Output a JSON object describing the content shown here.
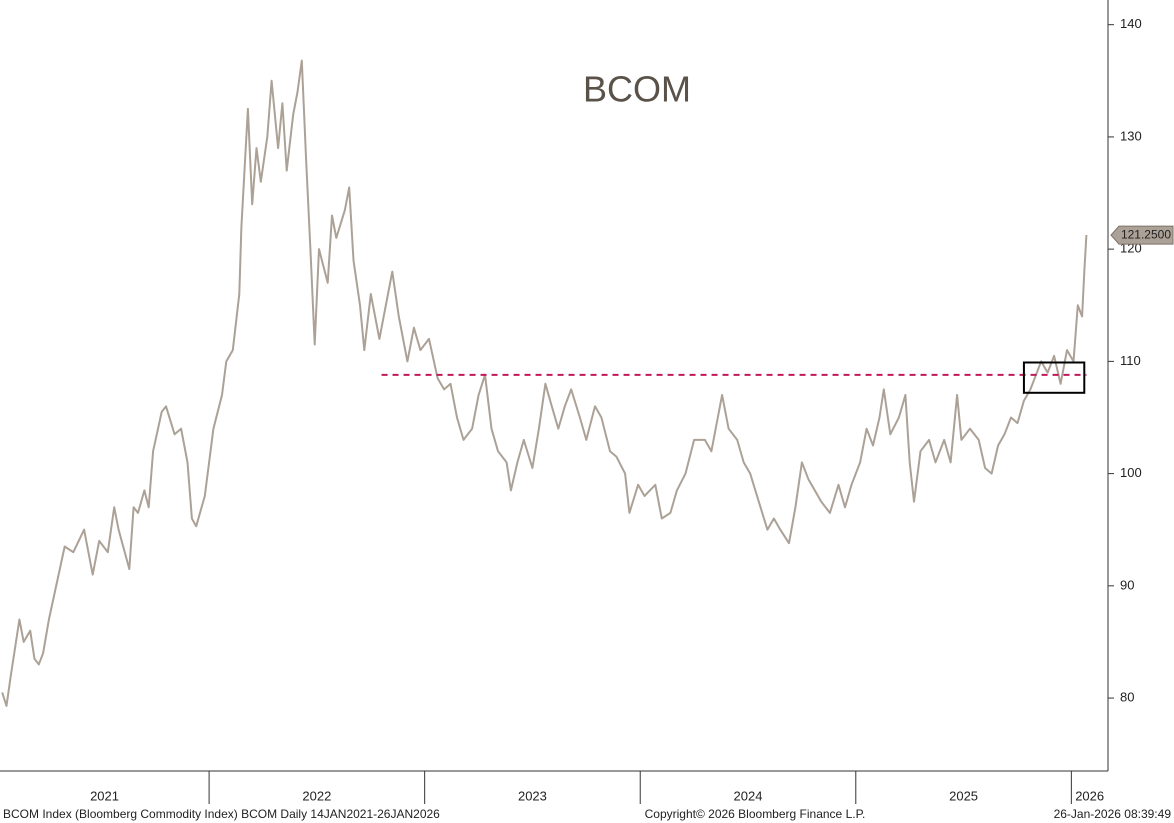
{
  "chart_data": {
    "type": "line",
    "title": "BCOM",
    "x": [
      2021.04,
      2021.06,
      2021.08,
      2021.1,
      2021.12,
      2021.14,
      2021.17,
      2021.19,
      2021.21,
      2021.23,
      2021.257,
      2021.33,
      2021.37,
      2021.42,
      2021.46,
      2021.49,
      2021.53,
      2021.56,
      2021.58,
      2021.63,
      2021.65,
      2021.67,
      2021.7,
      2021.72,
      2021.74,
      2021.78,
      2021.8,
      2021.84,
      2021.87,
      2021.9,
      2021.92,
      2021.94,
      2021.98,
      2022.0,
      2022.02,
      2022.06,
      2022.08,
      2022.11,
      2022.14,
      2022.15,
      2022.18,
      2022.2,
      2022.22,
      2022.24,
      2022.27,
      2022.29,
      2022.32,
      2022.34,
      2022.36,
      2022.39,
      2022.41,
      2022.43,
      2022.45,
      2022.47,
      2022.49,
      2022.51,
      2022.55,
      2022.57,
      2022.59,
      2022.63,
      2022.65,
      2022.67,
      2022.7,
      2022.72,
      2022.75,
      2022.79,
      2022.83,
      2022.85,
      2022.88,
      2022.92,
      2022.95,
      2022.98,
      2023.02,
      2023.06,
      2023.09,
      2023.12,
      2023.15,
      2023.18,
      2023.22,
      2023.25,
      2023.28,
      2023.31,
      2023.34,
      2023.38,
      2023.4,
      2023.43,
      2023.46,
      2023.5,
      2023.53,
      2023.56,
      2023.59,
      2023.62,
      2023.65,
      2023.68,
      2023.72,
      2023.75,
      2023.79,
      2023.82,
      2023.86,
      2023.89,
      2023.93,
      2023.95,
      2023.99,
      2024.02,
      2024.07,
      2024.1,
      2024.14,
      2024.17,
      2024.21,
      2024.25,
      2024.3,
      2024.33,
      2024.36,
      2024.38,
      2024.41,
      2024.45,
      2024.48,
      2024.51,
      2024.55,
      2024.59,
      2024.62,
      2024.65,
      2024.69,
      2024.72,
      2024.75,
      2024.78,
      2024.81,
      2024.84,
      2024.88,
      2024.92,
      2024.95,
      2024.98,
      2025.02,
      2025.05,
      2025.08,
      2025.11,
      2025.13,
      2025.16,
      2025.2,
      2025.23,
      2025.25,
      2025.27,
      2025.3,
      2025.34,
      2025.37,
      2025.41,
      2025.44,
      2025.47,
      2025.49,
      2025.53,
      2025.57,
      2025.6,
      2025.63,
      2025.66,
      2025.69,
      2025.72,
      2025.75,
      2025.78,
      2025.81,
      2025.83,
      2025.86,
      2025.89,
      2025.92,
      2025.95,
      2025.98,
      2026.01,
      2026.03,
      2026.05,
      2026.06,
      2026.07
    ],
    "series": [
      {
        "color": "#aca196",
        "values": [
          80.5,
          79.3,
          82,
          84.5,
          87,
          85,
          86,
          83.5,
          83,
          84,
          87,
          93.5,
          93,
          95,
          91,
          94,
          93,
          97,
          95,
          91.5,
          97,
          96.5,
          98.5,
          97,
          102,
          105.5,
          106,
          103.5,
          104,
          101,
          96,
          95.3,
          98,
          101,
          104,
          107,
          110,
          111,
          116,
          122,
          132.5,
          124,
          129,
          126,
          130,
          135,
          129,
          133,
          127,
          132,
          134,
          136.8,
          128,
          120,
          111.5,
          120,
          117,
          123,
          121,
          123.5,
          125.5,
          119,
          115,
          111,
          116,
          112,
          116,
          118,
          114,
          110,
          113,
          111,
          112,
          108.5,
          107.5,
          108,
          105,
          103,
          104,
          107,
          108.8,
          104,
          102,
          101,
          98.5,
          101,
          103,
          100.5,
          104,
          108,
          106,
          104,
          106,
          107.5,
          105,
          103,
          106,
          105,
          102,
          101.5,
          100,
          96.5,
          99,
          98,
          99,
          96,
          96.5,
          98.5,
          100,
          103,
          103,
          102,
          105,
          107,
          104,
          103,
          101,
          100,
          97.5,
          95,
          96,
          95,
          93.8,
          97,
          101,
          99.5,
          98.5,
          97.5,
          96.5,
          99,
          97,
          99,
          101,
          104,
          102.5,
          105,
          107.5,
          103.5,
          105,
          107,
          101,
          97.5,
          102,
          103,
          101,
          103,
          101,
          107,
          103,
          104,
          103,
          100.5,
          100,
          102.5,
          103.5,
          105,
          104.5,
          106.5,
          107.5,
          108.5,
          110,
          109,
          110.5,
          108,
          111,
          110,
          115,
          114,
          118,
          121.25
        ]
      }
    ],
    "xlim": [
      2021.03,
      2026.17
    ],
    "xticks": [
      2021,
      2022,
      2023,
      2024,
      2025,
      2026
    ],
    "ylim": [
      73.5,
      142.2
    ],
    "yticks": [
      80,
      90,
      100,
      110,
      120,
      130,
      140
    ],
    "last_value": {
      "value": 121.25,
      "label": "121.2500"
    },
    "reference_line": {
      "y": 108.8,
      "x": [
        2022.8,
        2026.07
      ],
      "color": "#c0185a"
    },
    "box": {
      "x": [
        2025.78,
        2026.06
      ],
      "y": [
        107.2,
        109.9
      ],
      "color": "#000000"
    },
    "footer": {
      "left": "BCOM Index (Bloomberg Commodity Index) BCOM Daily 14JAN2021-26JAN2026",
      "center": "Copyright© 2026 Bloomberg Finance L.P.",
      "right": "26-Jan-2026 08:39:49"
    }
  }
}
